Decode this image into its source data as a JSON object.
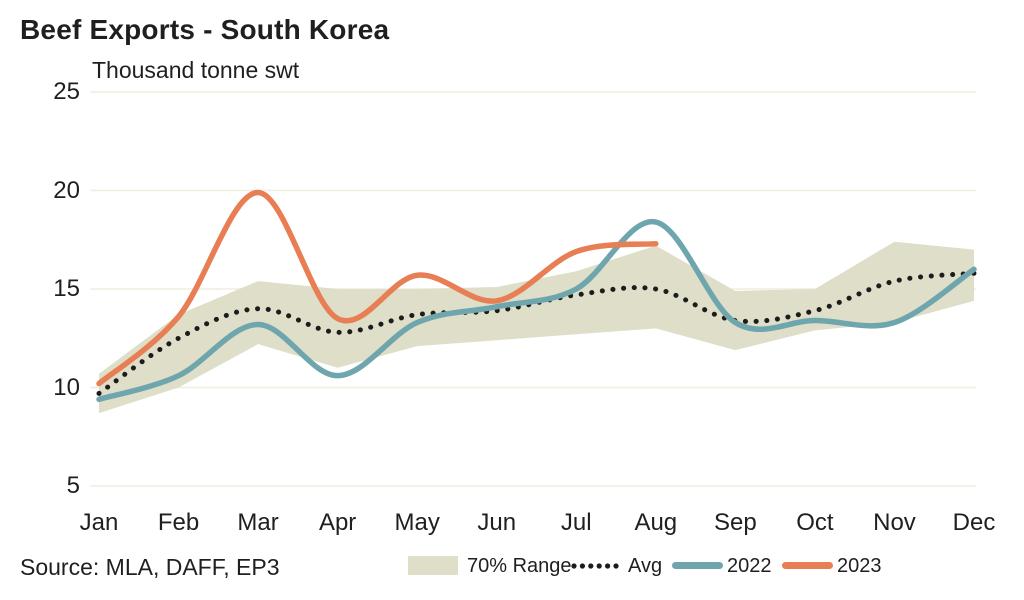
{
  "header": {
    "title": "Beef Exports - South Korea",
    "unit": "Thousand tonne swt"
  },
  "footer": {
    "source": "Source: MLA, DAFF, EP3"
  },
  "legend": {
    "range": "70% Range",
    "avg": "Avg",
    "y2022": "2022",
    "y2023": "2023"
  },
  "colors": {
    "band": "#dedec9",
    "avg": "#1c1c1c",
    "y2022": "#6fa6ae",
    "y2023": "#e87e54",
    "grid": "#f0eee0",
    "text": "#1f1f1f"
  },
  "chart_data": {
    "type": "line",
    "title": "Beef Exports - South Korea",
    "ylabel": "Thousand tonne swt",
    "x": [
      "Jan",
      "Feb",
      "Mar",
      "Apr",
      "May",
      "Jun",
      "Jul",
      "Aug",
      "Sep",
      "Oct",
      "Nov",
      "Dec"
    ],
    "yticks": [
      25,
      20,
      15,
      10,
      5
    ],
    "ylim": [
      5,
      25
    ],
    "grid": true,
    "legend_position": "bottom",
    "band": {
      "name": "70% Range",
      "upper": [
        10.7,
        13.7,
        15.4,
        15.0,
        15.0,
        15.1,
        15.9,
        17.2,
        14.9,
        15.0,
        17.4,
        17.0
      ],
      "lower": [
        8.7,
        10.0,
        12.2,
        11.0,
        12.1,
        12.4,
        12.7,
        13.0,
        11.9,
        12.9,
        13.3,
        14.4
      ]
    },
    "series": [
      {
        "name": "Avg",
        "style": "dotted",
        "values": [
          9.7,
          12.5,
          14.0,
          12.8,
          13.7,
          13.9,
          14.7,
          15.0,
          13.4,
          13.9,
          15.4,
          15.8
        ]
      },
      {
        "name": "2022",
        "style": "solid",
        "values": [
          9.4,
          10.6,
          13.2,
          10.6,
          13.3,
          14.1,
          15.0,
          18.4,
          13.3,
          13.4,
          13.3,
          16.0
        ]
      },
      {
        "name": "2023",
        "style": "solid",
        "values": [
          10.2,
          13.6,
          19.9,
          13.5,
          15.7,
          14.4,
          16.9,
          17.3,
          null,
          null,
          null,
          null
        ]
      }
    ]
  }
}
